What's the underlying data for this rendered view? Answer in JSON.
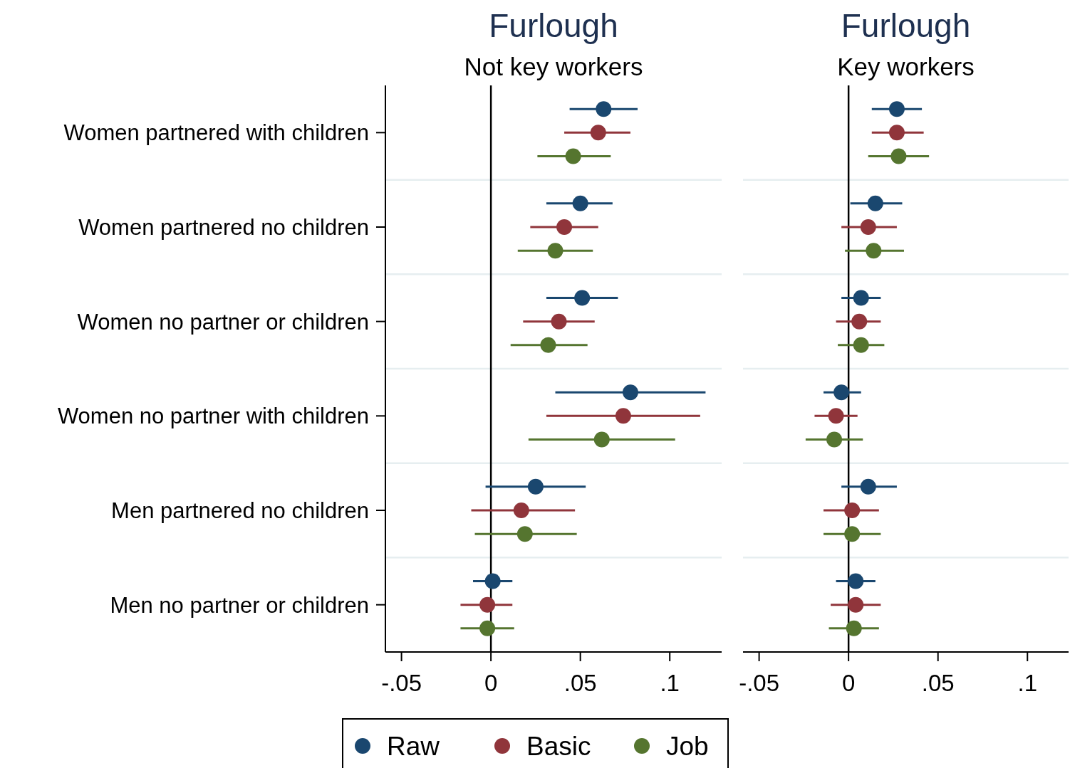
{
  "chart_data": [
    {
      "type": "scatter",
      "orientation": "horizontal",
      "title": "Furlough",
      "subtitle": "Not key workers",
      "categories": [
        "Women partnered with children",
        "Women partnered no children",
        "Women no partner or children",
        "Women no partner with children",
        "Men partnered no children",
        "Men no partner or children"
      ],
      "series": [
        {
          "name": "Raw",
          "color": "#1a476f",
          "values": [
            0.063,
            0.05,
            0.051,
            0.078,
            0.025,
            0.001
          ],
          "errors": [
            [
              0.044,
              0.082
            ],
            [
              0.031,
              0.068
            ],
            [
              0.031,
              0.071
            ],
            [
              0.036,
              0.12
            ],
            [
              -0.003,
              0.053
            ],
            [
              -0.01,
              0.012
            ]
          ]
        },
        {
          "name": "Basic",
          "color": "#90353b",
          "values": [
            0.06,
            0.041,
            0.038,
            0.074,
            0.017,
            -0.002
          ],
          "errors": [
            [
              0.041,
              0.078
            ],
            [
              0.022,
              0.06
            ],
            [
              0.018,
              0.058
            ],
            [
              0.031,
              0.117
            ],
            [
              -0.011,
              0.047
            ],
            [
              -0.017,
              0.012
            ]
          ]
        },
        {
          "name": "Job",
          "color": "#55752f",
          "values": [
            0.046,
            0.036,
            0.032,
            0.062,
            0.019,
            -0.002
          ],
          "errors": [
            [
              0.026,
              0.067
            ],
            [
              0.015,
              0.057
            ],
            [
              0.011,
              0.054
            ],
            [
              0.021,
              0.103
            ],
            [
              -0.009,
              0.048
            ],
            [
              -0.017,
              0.013
            ]
          ]
        }
      ],
      "xlim": [
        -0.059,
        0.129
      ],
      "xticks": [
        {
          "value": -0.05,
          "label": "-.05"
        },
        0,
        {
          "value": 0.05,
          "label": ".05"
        },
        {
          "value": 0.1,
          "label": ".1"
        }
      ],
      "ref_lines": [
        {
          "axis": "x",
          "value": 0,
          "color": "#000000"
        }
      ],
      "grid": "y",
      "marker": "circle",
      "legend": "bottom"
    },
    {
      "type": "scatter",
      "orientation": "horizontal",
      "title": "Furlough",
      "subtitle": "Key workers",
      "categories": [
        null,
        null,
        null,
        null,
        null,
        null
      ],
      "series": [
        {
          "color": "#1a476f",
          "values": [
            0.027,
            0.015,
            0.007,
            -0.004,
            0.011,
            0.004
          ],
          "errors": [
            [
              0.013,
              0.041
            ],
            [
              0.001,
              0.03
            ],
            [
              -0.004,
              0.018
            ],
            [
              -0.014,
              0.007
            ],
            [
              -0.004,
              0.027
            ],
            [
              -0.007,
              0.015
            ]
          ]
        },
        {
          "color": "#90353b",
          "values": [
            0.027,
            0.011,
            0.006,
            -0.007,
            0.002,
            0.004
          ],
          "errors": [
            [
              0.013,
              0.042
            ],
            [
              -0.004,
              0.027
            ],
            [
              -0.007,
              0.018
            ],
            [
              -0.019,
              0.005
            ],
            [
              -0.014,
              0.017
            ],
            [
              -0.01,
              0.018
            ]
          ]
        },
        {
          "color": "#55752f",
          "values": [
            0.028,
            0.014,
            0.007,
            -0.008,
            0.002,
            0.003
          ],
          "errors": [
            [
              0.011,
              0.045
            ],
            [
              -0.002,
              0.031
            ],
            [
              -0.006,
              0.02
            ],
            [
              -0.024,
              0.008
            ],
            [
              -0.014,
              0.018
            ],
            [
              -0.011,
              0.017
            ]
          ]
        }
      ],
      "xlim": [
        -0.059,
        0.123
      ],
      "xticks": [
        {
          "value": -0.05,
          "label": "-.05"
        },
        0,
        {
          "value": 0.05,
          "label": ".05"
        },
        {
          "value": 0.1,
          "label": ".1"
        }
      ],
      "ref_lines": [
        {
          "axis": "x",
          "value": 0,
          "color": "#000000"
        }
      ],
      "grid": "y",
      "marker": "circle",
      "tick_labels": "x"
    }
  ]
}
